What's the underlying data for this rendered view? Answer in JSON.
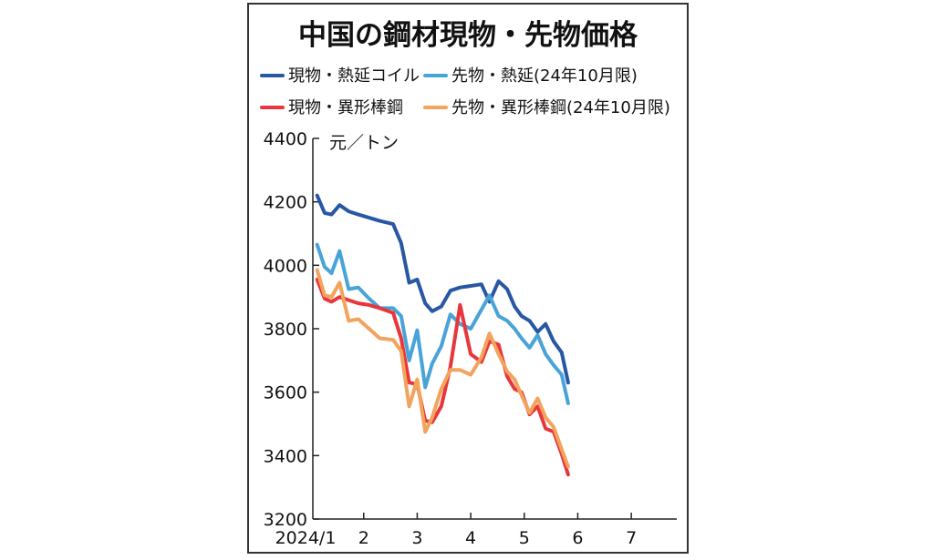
{
  "chart_data": {
    "type": "line",
    "title": "中国の鋼材現物・先物価格",
    "ylabel": "元／トン",
    "xlabel": "",
    "ylim": [
      3200,
      4400
    ],
    "yticks": [
      3200,
      3400,
      3600,
      3800,
      4000,
      4200,
      4400
    ],
    "xlim": [
      1.05,
      7.85
    ],
    "xticks": [
      {
        "x": 1.0,
        "label": "2024/1"
      },
      {
        "x": 2.0,
        "label": "2"
      },
      {
        "x": 3.0,
        "label": "3"
      },
      {
        "x": 4.0,
        "label": "4"
      },
      {
        "x": 5.0,
        "label": "5"
      },
      {
        "x": 6.0,
        "label": "6"
      },
      {
        "x": 7.0,
        "label": "7"
      }
    ],
    "grid": false,
    "legend_position": "top",
    "series": [
      {
        "name": "現物・熱延コイル",
        "color": "#2857a4",
        "points": [
          [
            1.13,
            4220
          ],
          [
            1.27,
            4165
          ],
          [
            1.4,
            4160
          ],
          [
            1.55,
            4190
          ],
          [
            1.72,
            4170
          ],
          [
            1.9,
            4160
          ],
          [
            2.1,
            4150
          ],
          [
            2.3,
            4140
          ],
          [
            2.55,
            4130
          ],
          [
            2.7,
            4070
          ],
          [
            2.85,
            3945
          ],
          [
            3.0,
            3955
          ],
          [
            3.15,
            3880
          ],
          [
            3.28,
            3855
          ],
          [
            3.45,
            3870
          ],
          [
            3.62,
            3920
          ],
          [
            3.8,
            3930
          ],
          [
            4.0,
            3935
          ],
          [
            4.2,
            3940
          ],
          [
            4.35,
            3885
          ],
          [
            4.52,
            3950
          ],
          [
            4.68,
            3925
          ],
          [
            4.82,
            3870
          ],
          [
            4.95,
            3840
          ],
          [
            5.1,
            3825
          ],
          [
            5.25,
            3790
          ],
          [
            5.4,
            3815
          ],
          [
            5.55,
            3760
          ],
          [
            5.7,
            3725
          ],
          [
            5.82,
            3630
          ]
        ]
      },
      {
        "name": "先物・熱延(24年10月限)",
        "color": "#48a4d8",
        "points": [
          [
            1.13,
            4065
          ],
          [
            1.27,
            3995
          ],
          [
            1.4,
            3975
          ],
          [
            1.55,
            4045
          ],
          [
            1.72,
            3925
          ],
          [
            1.9,
            3930
          ],
          [
            2.1,
            3895
          ],
          [
            2.3,
            3865
          ],
          [
            2.55,
            3865
          ],
          [
            2.7,
            3840
          ],
          [
            2.85,
            3700
          ],
          [
            3.0,
            3795
          ],
          [
            3.15,
            3615
          ],
          [
            3.28,
            3690
          ],
          [
            3.45,
            3745
          ],
          [
            3.62,
            3845
          ],
          [
            3.8,
            3815
          ],
          [
            4.0,
            3800
          ],
          [
            4.2,
            3860
          ],
          [
            4.35,
            3905
          ],
          [
            4.52,
            3840
          ],
          [
            4.68,
            3825
          ],
          [
            4.82,
            3800
          ],
          [
            4.95,
            3770
          ],
          [
            5.1,
            3740
          ],
          [
            5.25,
            3780
          ],
          [
            5.4,
            3720
          ],
          [
            5.55,
            3685
          ],
          [
            5.7,
            3655
          ],
          [
            5.82,
            3565
          ]
        ]
      },
      {
        "name": "現物・異形棒鋼",
        "color": "#e8373c",
        "points": [
          [
            1.13,
            3955
          ],
          [
            1.27,
            3895
          ],
          [
            1.4,
            3885
          ],
          [
            1.55,
            3900
          ],
          [
            1.72,
            3890
          ],
          [
            1.9,
            3880
          ],
          [
            2.1,
            3875
          ],
          [
            2.3,
            3865
          ],
          [
            2.55,
            3850
          ],
          [
            2.7,
            3770
          ],
          [
            2.85,
            3630
          ],
          [
            3.0,
            3625
          ],
          [
            3.15,
            3510
          ],
          [
            3.28,
            3505
          ],
          [
            3.45,
            3555
          ],
          [
            3.62,
            3680
          ],
          [
            3.8,
            3875
          ],
          [
            4.0,
            3720
          ],
          [
            4.2,
            3695
          ],
          [
            4.35,
            3760
          ],
          [
            4.52,
            3750
          ],
          [
            4.68,
            3650
          ],
          [
            4.82,
            3610
          ],
          [
            4.95,
            3600
          ],
          [
            5.1,
            3530
          ],
          [
            5.25,
            3555
          ],
          [
            5.4,
            3485
          ],
          [
            5.55,
            3475
          ],
          [
            5.7,
            3405
          ],
          [
            5.82,
            3340
          ]
        ]
      },
      {
        "name": "先物・異形棒鋼(24年10月限)",
        "color": "#f2a35c",
        "points": [
          [
            1.13,
            3985
          ],
          [
            1.27,
            3905
          ],
          [
            1.4,
            3900
          ],
          [
            1.55,
            3945
          ],
          [
            1.72,
            3825
          ],
          [
            1.9,
            3830
          ],
          [
            2.1,
            3800
          ],
          [
            2.3,
            3770
          ],
          [
            2.55,
            3765
          ],
          [
            2.7,
            3730
          ],
          [
            2.85,
            3555
          ],
          [
            3.0,
            3640
          ],
          [
            3.15,
            3475
          ],
          [
            3.28,
            3520
          ],
          [
            3.45,
            3610
          ],
          [
            3.62,
            3670
          ],
          [
            3.8,
            3670
          ],
          [
            4.0,
            3655
          ],
          [
            4.2,
            3710
          ],
          [
            4.35,
            3785
          ],
          [
            4.52,
            3720
          ],
          [
            4.68,
            3665
          ],
          [
            4.82,
            3640
          ],
          [
            4.95,
            3590
          ],
          [
            5.1,
            3535
          ],
          [
            5.25,
            3580
          ],
          [
            5.4,
            3520
          ],
          [
            5.55,
            3490
          ],
          [
            5.7,
            3420
          ],
          [
            5.82,
            3365
          ]
        ]
      }
    ]
  }
}
